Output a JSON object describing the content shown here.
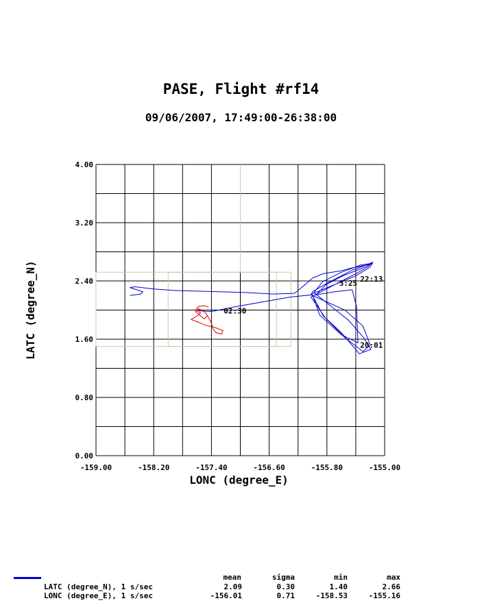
{
  "title": "PASE, Flight #rf14",
  "subtitle": "09/06/2007, 17:49:00-26:38:00",
  "colors": {
    "track": "#0000cc",
    "highlight": "#dd0000",
    "box": "#c8c8a8",
    "grid": "#000000"
  },
  "chart_data": {
    "type": "line",
    "xlabel": "LONC (degree_E)",
    "ylabel": "LATC (degree_N)",
    "xlim": [
      -159.0,
      -155.0
    ],
    "ylim": [
      0.0,
      4.0
    ],
    "xticks": [
      "-159.00",
      "-158.20",
      "-157.40",
      "-156.60",
      "-155.80",
      "-155.00"
    ],
    "yticks": [
      "0.00",
      "0.80",
      "1.60",
      "2.40",
      "3.20",
      "4.00"
    ],
    "grid": true,
    "time_labels": [
      {
        "text": "22:13",
        "x": -155.34,
        "y": 2.43
      },
      {
        "text": "3:25",
        "x": -155.63,
        "y": 2.37
      },
      {
        "text": "20:01",
        "x": -155.34,
        "y": 1.52
      },
      {
        "text": "02:30",
        "x": -157.23,
        "y": 1.99
      }
    ],
    "series": [
      {
        "name": "LATC (degree_N), 1 s/sec",
        "color": "#0000cc",
        "x": [
          -158.53,
          -158.38,
          -158.35,
          -158.53,
          -158.46,
          -158.2,
          -157.93,
          -157.6,
          -157.25,
          -156.9,
          -156.55,
          -156.25,
          -156.1,
          -156.0,
          -155.85,
          -155.6,
          -155.45,
          -155.3,
          -155.2,
          -155.16,
          -155.25,
          -155.45,
          -155.6,
          -155.8,
          -156.0,
          -156.02,
          -155.55,
          -155.3,
          -155.2,
          -155.3,
          -155.55,
          -155.82,
          -156.02,
          -156.0,
          -155.4,
          -155.22,
          -155.19,
          -155.33,
          -155.6,
          -155.86,
          -155.98,
          -155.5,
          -155.29,
          -155.19,
          -155.35,
          -155.61,
          -155.85,
          -156.01,
          -155.4,
          -155.2,
          -155.17,
          -155.3,
          -155.58,
          -155.81,
          -155.95,
          -155.7,
          -155.45,
          -155.39,
          -155.37,
          -155.6,
          -155.9,
          -156.0,
          -156.3,
          -156.7,
          -157.05,
          -157.4,
          -157.58
        ],
        "y": [
          2.2,
          2.22,
          2.25,
          2.31,
          2.32,
          2.29,
          2.27,
          2.26,
          2.25,
          2.24,
          2.22,
          2.23,
          2.35,
          2.44,
          2.5,
          2.54,
          2.58,
          2.61,
          2.63,
          2.66,
          2.62,
          2.55,
          2.47,
          2.37,
          2.25,
          2.21,
          2.0,
          1.78,
          1.52,
          1.43,
          1.62,
          1.89,
          2.18,
          2.19,
          2.5,
          2.6,
          2.64,
          2.62,
          2.52,
          2.39,
          2.24,
          1.86,
          1.62,
          1.46,
          1.4,
          1.7,
          1.92,
          2.22,
          2.47,
          2.59,
          2.64,
          2.58,
          2.47,
          2.35,
          2.21,
          2.25,
          2.28,
          2.05,
          1.55,
          1.66,
          1.93,
          2.21,
          2.18,
          2.11,
          2.05,
          1.98,
          1.99
        ]
      },
      {
        "name": "LONC (degree_E), 1 s/sec",
        "color": "#dd0000",
        "x": [
          -157.44,
          -157.5,
          -157.58,
          -157.62,
          -157.55,
          -157.6,
          -157.68,
          -157.6,
          -157.55,
          -157.48,
          -157.35,
          -157.24,
          -157.26,
          -157.34,
          -157.38,
          -157.4,
          -157.43,
          -157.46,
          -157.49,
          -157.52,
          -157.58,
          -157.62,
          -157.55,
          -157.5,
          -157.46
        ],
        "y": [
          2.04,
          2.06,
          2.05,
          2.0,
          1.96,
          1.92,
          1.87,
          1.84,
          1.82,
          1.79,
          1.76,
          1.72,
          1.67,
          1.69,
          1.75,
          1.82,
          1.88,
          1.93,
          1.97,
          1.99,
          2.02,
          1.98,
          1.92,
          1.88,
          1.92
        ]
      }
    ],
    "boxes": [
      {
        "x": [
          -158.0,
          -156.5
        ],
        "y": [
          1.5,
          2.52
        ]
      },
      {
        "x": [
          -159.0,
          -156.3
        ],
        "y": [
          1.5,
          2.52
        ]
      },
      {
        "x": [
          -157.0,
          -157.0
        ],
        "y": [
          2.52,
          4.0
        ]
      }
    ]
  },
  "stats": {
    "headers": [
      "mean",
      "sigma",
      "min",
      "max"
    ],
    "rows": [
      {
        "name": "LATC (degree_N), 1 s/sec",
        "mean": "2.09",
        "sigma": "0.30",
        "min": "1.40",
        "max": "2.66"
      },
      {
        "name": "LONC (degree_E), 1 s/sec",
        "mean": "-156.01",
        "sigma": "0.71",
        "min": "-158.53",
        "max": "-155.16"
      }
    ]
  }
}
